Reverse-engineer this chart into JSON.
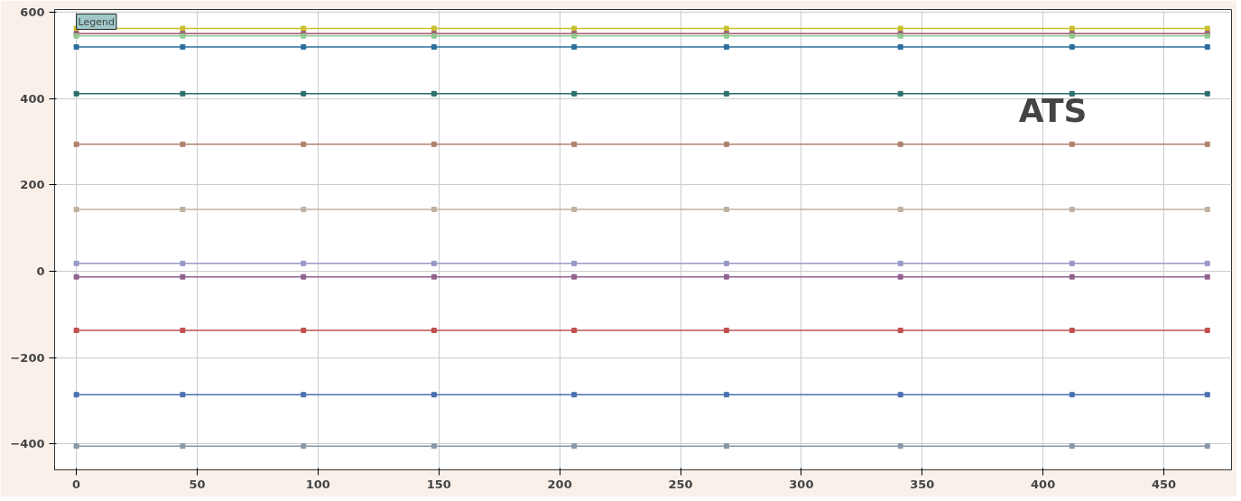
{
  "chart_data": {
    "type": "line",
    "marker": "square",
    "grid": true,
    "x": [
      0,
      44,
      94,
      148,
      206,
      269,
      341,
      412,
      468
    ],
    "xlim": [
      -9,
      478
    ],
    "xticks": [
      0,
      50,
      100,
      150,
      200,
      250,
      300,
      350,
      400,
      450
    ],
    "ylim": [
      -460,
      606
    ],
    "yticks": [
      -400,
      -200,
      0,
      200,
      400,
      600
    ],
    "series": [
      {
        "color": "#c8c030",
        "values": [
          562,
          562,
          562,
          562,
          562,
          562,
          562,
          562,
          562
        ]
      },
      {
        "color": "#a05070",
        "values": [
          550,
          550,
          550,
          550,
          550,
          550,
          550,
          550,
          550
        ]
      },
      {
        "color": "#90c890",
        "values": [
          545,
          545,
          545,
          545,
          545,
          545,
          545,
          545,
          545
        ]
      },
      {
        "color": "#2a6e9e",
        "values": [
          519,
          519,
          519,
          519,
          519,
          519,
          519,
          519,
          519
        ]
      },
      {
        "color": "#2a6e6e",
        "values": [
          411,
          411,
          411,
          411,
          411,
          411,
          411,
          411,
          411
        ]
      },
      {
        "color": "#b08070",
        "values": [
          294,
          294,
          294,
          294,
          294,
          294,
          294,
          294,
          294
        ]
      },
      {
        "color": "#c0b0a0",
        "values": [
          143,
          143,
          143,
          143,
          143,
          143,
          143,
          143,
          143
        ]
      },
      {
        "color": "#9898c8",
        "values": [
          18,
          18,
          18,
          18,
          18,
          18,
          18,
          18,
          18
        ]
      },
      {
        "color": "#906090",
        "values": [
          -13,
          -13,
          -13,
          -13,
          -13,
          -13,
          -13,
          -13,
          -13
        ]
      },
      {
        "color": "#c05050",
        "values": [
          -137,
          -137,
          -137,
          -137,
          -137,
          -137,
          -137,
          -137,
          -137
        ]
      },
      {
        "color": "#4a70b0",
        "values": [
          -286,
          -286,
          -286,
          -286,
          -286,
          -286,
          -286,
          -286,
          -286
        ]
      },
      {
        "color": "#8898a8",
        "values": [
          -405,
          -405,
          -405,
          -405,
          -405,
          -405,
          -405,
          -405,
          -405
        ]
      }
    ],
    "annotations": [
      "ATS",
      "Legend"
    ]
  }
}
